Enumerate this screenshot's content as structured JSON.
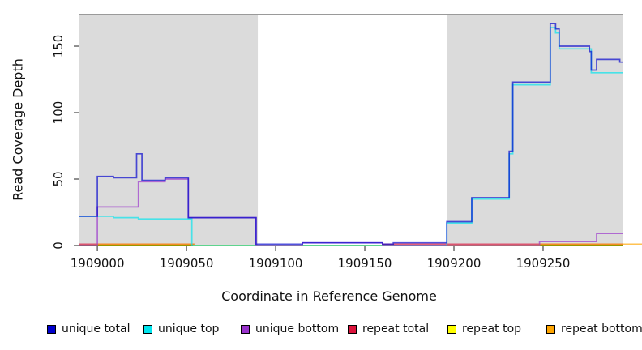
{
  "figure": {
    "x_axis_title": "Coordinate in Reference Genome",
    "y_axis_title": "Read Coverage Depth"
  },
  "chart_data": {
    "type": "line",
    "subtype": "step-coverage",
    "title": "",
    "xlabel": "Coordinate in Reference Genome",
    "ylabel": "Read Coverage Depth",
    "xlim": [
      1908989.5,
      1909294.7
    ],
    "ylim": [
      0,
      174.4
    ],
    "x_ticks": [
      1909000,
      1909050,
      1909100,
      1909150,
      1909200,
      1909250
    ],
    "y_ticks": [
      0,
      50,
      100,
      150
    ],
    "grid": false,
    "legend_position": "bottom",
    "background_color": "#ffffff",
    "shaded_regions": [
      {
        "name": "left-repeat-shade",
        "from": 1908989.5,
        "to": 1909090,
        "color": "#DBDBDB"
      },
      {
        "name": "right-repeat-shade",
        "from": 1909196,
        "to": 1909294.7,
        "color": "#DBDBDB"
      }
    ],
    "line_alpha": 0.68,
    "line_width": 1.7,
    "series": [
      {
        "name": "repeat total",
        "color": "#DC143C",
        "points": [
          [
            1908989.5,
            1
          ],
          [
            1909054,
            0
          ],
          [
            1909160,
            1
          ],
          [
            1909294.7,
            1
          ]
        ]
      },
      {
        "name": "repeat bottom",
        "color": "#FFA500",
        "points": [
          [
            1909000,
            0
          ],
          [
            1909000,
            1
          ],
          [
            1909054,
            0
          ],
          [
            1909248,
            1
          ],
          [
            1909305.5,
            1
          ]
        ]
      },
      {
        "name": "repeat top",
        "color": "#FFFF00",
        "points": [
          [
            1908989.5,
            0
          ],
          [
            1909294.7,
            0
          ]
        ]
      },
      {
        "name": "unique top",
        "color": "#00E5EE",
        "points": [
          [
            1908989.5,
            22
          ],
          [
            1909009,
            21
          ],
          [
            1909023,
            20
          ],
          [
            1909053,
            0
          ],
          [
            1909196,
            17
          ],
          [
            1909210,
            35
          ],
          [
            1909231,
            69
          ],
          [
            1909233,
            121
          ],
          [
            1909254,
            164
          ],
          [
            1909257,
            160
          ],
          [
            1909259,
            148
          ],
          [
            1909277,
            130
          ],
          [
            1909294.7,
            130
          ]
        ]
      },
      {
        "name": "unique bottom",
        "color": "#9932CC",
        "points": [
          [
            1908989.5,
            0
          ],
          [
            1909000,
            29
          ],
          [
            1909023,
            48
          ],
          [
            1909038,
            50
          ],
          [
            1909051,
            21
          ],
          [
            1909089,
            0
          ],
          [
            1909115,
            2
          ],
          [
            1909160,
            0
          ],
          [
            1909248,
            3
          ],
          [
            1909280,
            9
          ],
          [
            1909294.7,
            9
          ]
        ]
      },
      {
        "name": "unique total",
        "color": "#0000CD",
        "points": [
          [
            1908989.5,
            22
          ],
          [
            1909000,
            52
          ],
          [
            1909009,
            51
          ],
          [
            1909022,
            69
          ],
          [
            1909025,
            49
          ],
          [
            1909038,
            51
          ],
          [
            1909051,
            21
          ],
          [
            1909089,
            1
          ],
          [
            1909115,
            2
          ],
          [
            1909160,
            1
          ],
          [
            1909166,
            2
          ],
          [
            1909196,
            18
          ],
          [
            1909210,
            36
          ],
          [
            1909231,
            71
          ],
          [
            1909233,
            123
          ],
          [
            1909254,
            167
          ],
          [
            1909257,
            163
          ],
          [
            1909259,
            150
          ],
          [
            1909276,
            146
          ],
          [
            1909277,
            132
          ],
          [
            1909280,
            140
          ],
          [
            1909293,
            138
          ],
          [
            1909294.7,
            138
          ]
        ]
      }
    ]
  },
  "legend": {
    "items": [
      {
        "label": "unique total",
        "color": "#0000CD"
      },
      {
        "label": "unique top",
        "color": "#00E5EE"
      },
      {
        "label": "unique bottom",
        "color": "#9932CC"
      },
      {
        "label": "repeat total",
        "color": "#DC143C"
      },
      {
        "label": "repeat top",
        "color": "#FFFF00"
      },
      {
        "label": "repeat bottom",
        "color": "#FFA500"
      }
    ]
  }
}
